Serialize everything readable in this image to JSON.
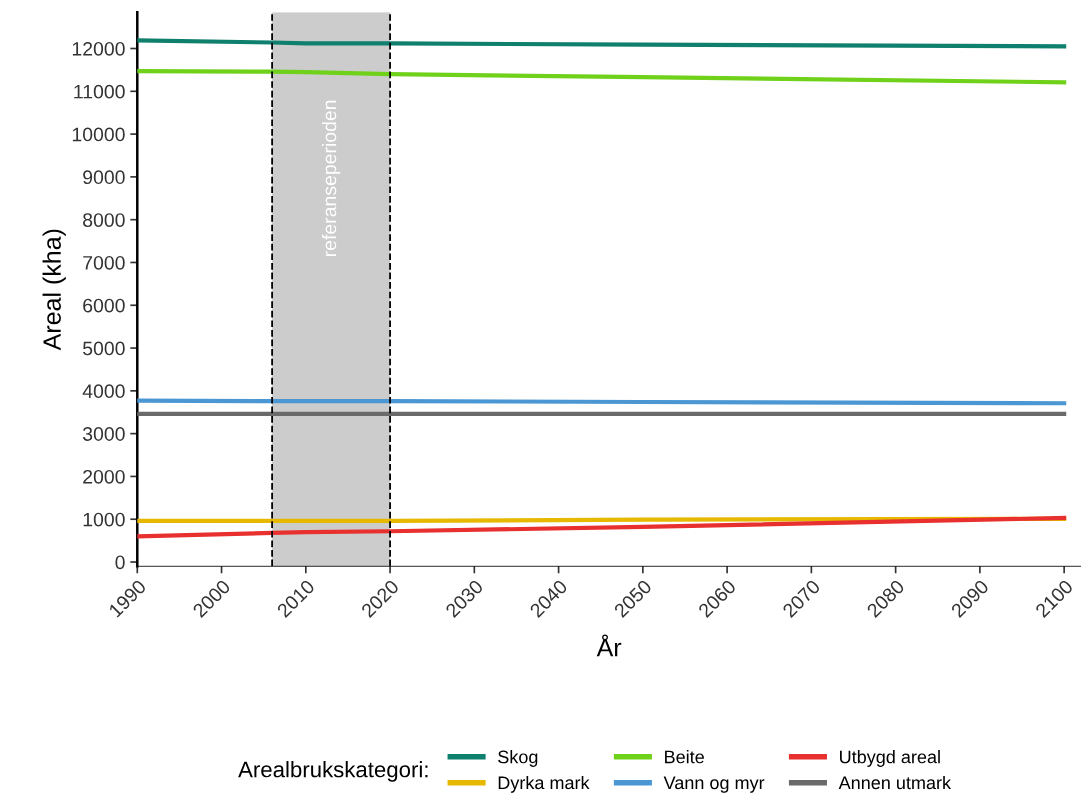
{
  "chart_data": {
    "type": "line",
    "xlabel": "År",
    "ylabel": "Areal (kha)",
    "legend_title": "Arealbrukskategori:",
    "legend": "bottom",
    "grid": false,
    "x": [
      1990,
      2006,
      2010,
      2020,
      2050,
      2100
    ],
    "series": [
      {
        "name": "Skog",
        "color": "#0f7f6e",
        "values": [
          12190,
          12140,
          12120,
          12120,
          12090,
          12050
        ]
      },
      {
        "name": "Dyrka mark",
        "color": "#e6b800",
        "values": [
          960,
          960,
          960,
          960,
          990,
          1010
        ]
      },
      {
        "name": "Beite",
        "color": "#6fd11a",
        "values": [
          11470,
          11460,
          11450,
          11400,
          11330,
          11210
        ]
      },
      {
        "name": "Vann og myr",
        "color": "#4a97d4",
        "values": [
          3770,
          3760,
          3760,
          3760,
          3740,
          3710
        ]
      },
      {
        "name": "Utbygd areal",
        "color": "#e8302e",
        "values": [
          600,
          680,
          700,
          720,
          820,
          1030
        ]
      },
      {
        "name": "Annen utmark",
        "color": "#6a6a6a",
        "values": [
          3460,
          3460,
          3460,
          3460,
          3460,
          3460
        ]
      }
    ],
    "bands": [
      {
        "axis": "x",
        "from": 2006,
        "to": 2020,
        "label": "referanseperioden",
        "color": "#cccccc"
      }
    ],
    "ref_lines": [
      {
        "axis": "x",
        "value": 2006,
        "line_style": "dashed",
        "color": "#000000"
      },
      {
        "axis": "x",
        "value": 2020,
        "line_style": "dashed",
        "color": "#000000"
      }
    ],
    "xlim": [
      1990,
      2102
    ],
    "ylim": [
      -100,
      12850
    ],
    "xticks": [
      1990,
      2000,
      2010,
      2020,
      2030,
      2040,
      2050,
      2060,
      2070,
      2080,
      2090,
      2100
    ],
    "yticks": [
      0,
      1000,
      2000,
      3000,
      4000,
      5000,
      6000,
      7000,
      8000,
      9000,
      10000,
      11000,
      12000
    ]
  }
}
